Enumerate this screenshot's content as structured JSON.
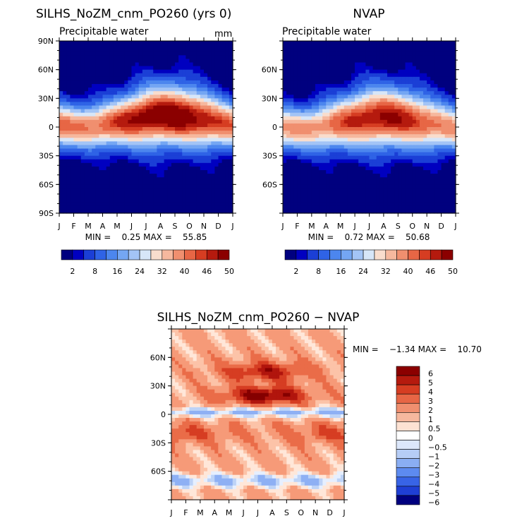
{
  "chart_data": [
    {
      "type": "heatmap",
      "title": "SILHS_NoZM_cnm_PO260 (yrs 0)",
      "subtitle": "Precipitable water",
      "units": "mm",
      "x_ticks": [
        "J",
        "F",
        "M",
        "A",
        "M",
        "J",
        "J",
        "A",
        "S",
        "O",
        "N",
        "D",
        "J"
      ],
      "y_ticks": [
        "90N",
        "60N",
        "30N",
        "0",
        "30S",
        "60S",
        "90S"
      ],
      "min_max_text": "MIN =    0.25 MAX =    55.85",
      "z_min": 0.25,
      "z_max": 55.85,
      "peak": {
        "lat": 12,
        "month": 7.5
      },
      "colorbar_labels": [
        "2",
        "8",
        "16",
        "24",
        "32",
        "40",
        "46",
        "50"
      ]
    },
    {
      "type": "heatmap",
      "title": "NVAP",
      "subtitle": "Precipitable water",
      "x_ticks": [
        "J",
        "F",
        "M",
        "A",
        "M",
        "J",
        "J",
        "A",
        "S",
        "O",
        "N",
        "D",
        "J"
      ],
      "y_ticks": [
        "",
        "60N",
        "30N",
        "0",
        "30S",
        "60S",
        ""
      ],
      "min_max_text": "MIN =    0.72 MAX =    50.68",
      "z_min": 0.72,
      "z_max": 50.68,
      "peak": {
        "lat": 8,
        "month": 7.0
      },
      "colorbar_labels": [
        "2",
        "8",
        "16",
        "24",
        "32",
        "40",
        "46",
        "50"
      ]
    },
    {
      "type": "heatmap",
      "title": "SILHS_NoZM_cnm_PO260 − NVAP",
      "x_ticks": [
        "J",
        "F",
        "M",
        "A",
        "M",
        "J",
        "J",
        "A",
        "S",
        "O",
        "N",
        "D",
        "J"
      ],
      "y_ticks": [
        "",
        "60N",
        "30N",
        "0",
        "30S",
        "60S",
        ""
      ],
      "min_max_text": "MIN =    −1.34 MAX =    10.70",
      "z_min": -1.34,
      "z_max": 10.7,
      "colorbar_levels": [
        "6",
        "5",
        "4",
        "3",
        "2",
        "1",
        "0.5",
        "0",
        "−0.5",
        "−1",
        "−2",
        "−3",
        "−4",
        "−5",
        "−6"
      ]
    }
  ]
}
